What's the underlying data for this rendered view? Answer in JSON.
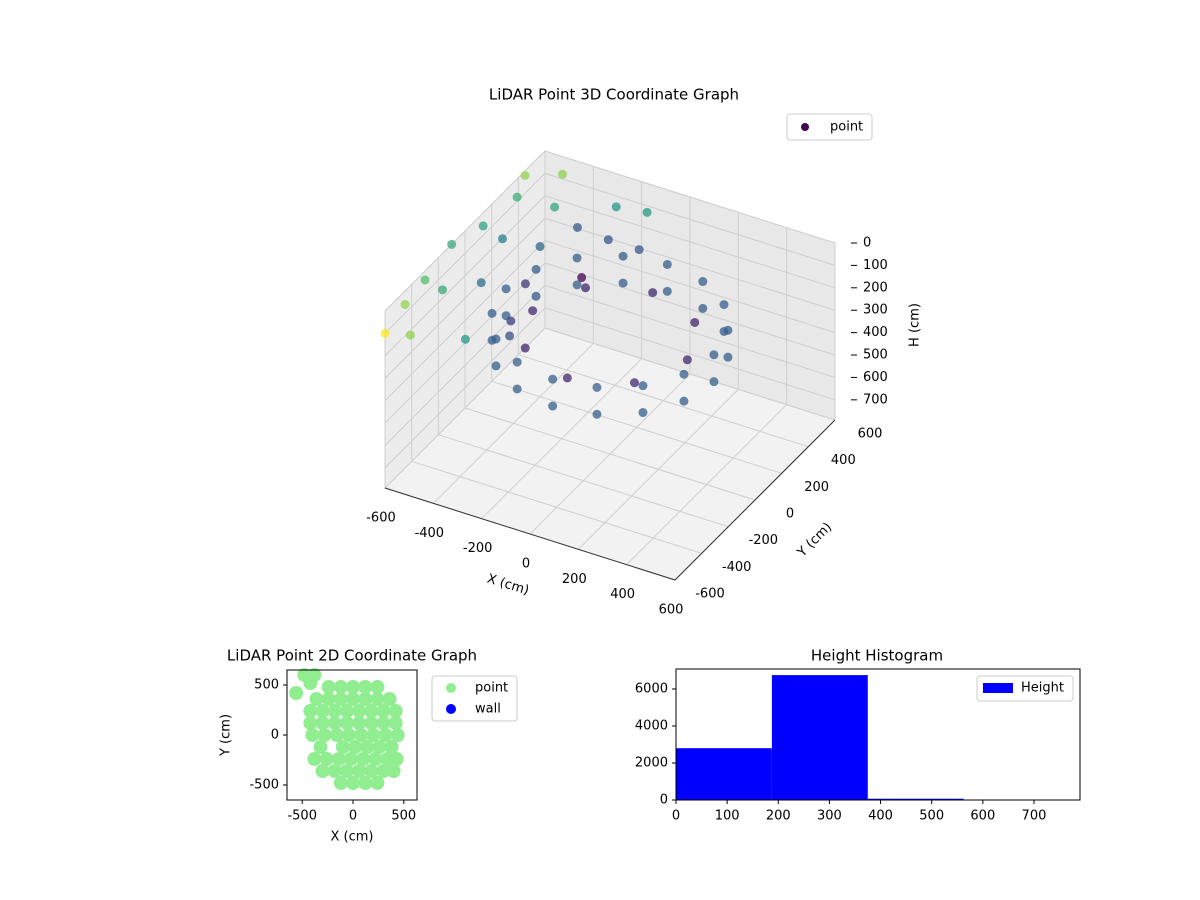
{
  "chart_data": [
    {
      "type": "scatter3d",
      "title": "LiDAR Point 3D Coordinate Graph",
      "xlabel": "X (cm)",
      "ylabel": "Y (cm)",
      "zlabel": "H (cm)",
      "xlim": [
        -600,
        600
      ],
      "ylim": [
        -600,
        600
      ],
      "zlim": [
        790,
        0
      ],
      "xticks": [
        -600,
        -400,
        -200,
        0,
        200,
        400,
        600
      ],
      "yticks": [
        -600,
        -400,
        -200,
        0,
        200,
        400,
        600
      ],
      "zticks": [
        0,
        100,
        200,
        300,
        400,
        500,
        600,
        700
      ],
      "cmap": "viridis",
      "legend": "upper right",
      "series": [
        {
          "name": "point",
          "color": "#440154",
          "x": [
            430,
            397,
            304,
            165,
            0,
            -165,
            -304,
            -397,
            -430,
            -397,
            -304,
            -165,
            0,
            165,
            304,
            397,
            430,
            397,
            304,
            165,
            0,
            -165,
            -304,
            -397,
            -430,
            -397,
            -304,
            -165,
            0,
            165,
            304,
            397,
            320,
            226,
            0,
            -226,
            -320,
            -226,
            0,
            226,
            -600,
            -600,
            -600,
            -550,
            -500,
            -600,
            -580,
            -550,
            -600,
            -500,
            -450,
            -400,
            -350,
            -300,
            -250,
            -200,
            -150,
            -100,
            -450,
            -350,
            -250,
            -500,
            -300,
            -200
          ],
          "y": [
            0,
            165,
            304,
            397,
            430,
            397,
            304,
            165,
            0,
            -165,
            -304,
            -397,
            -430,
            -397,
            -304,
            -165,
            0,
            165,
            304,
            397,
            430,
            397,
            304,
            165,
            0,
            -165,
            -304,
            -397,
            -430,
            -397,
            -304,
            -165,
            0,
            226,
            320,
            226,
            0,
            -226,
            -320,
            -226,
            -600,
            -450,
            -300,
            -500,
            -350,
            -100,
            100,
            300,
            450,
            550,
            400,
            200,
            0,
            -200,
            500,
            350,
            550,
            400,
            -150,
            -450,
            -300,
            100,
            300,
            150
          ],
          "z": [
            200,
            200,
            200,
            200,
            200,
            200,
            200,
            200,
            200,
            200,
            200,
            200,
            200,
            200,
            200,
            200,
            320,
            320,
            320,
            320,
            320,
            320,
            320,
            320,
            320,
            320,
            320,
            320,
            320,
            320,
            320,
            320,
            260,
            260,
            260,
            260,
            260,
            260,
            260,
            260,
            100,
            60,
            40,
            150,
            20,
            0,
            30,
            10,
            20,
            40,
            80,
            120,
            150,
            180,
            70,
            110,
            90,
            150,
            90,
            130,
            170,
            60,
            60,
            160
          ]
        }
      ]
    },
    {
      "type": "scatter",
      "title": "LiDAR Point 2D Coordinate Graph",
      "xlabel": "X (cm)",
      "ylabel": "Y (cm)",
      "xlim": [
        -650,
        630
      ],
      "ylim": [
        -650,
        650
      ],
      "xticks": [
        -500,
        0,
        500
      ],
      "yticks": [
        -500,
        0,
        500
      ],
      "legend": "outside right",
      "series": [
        {
          "name": "point",
          "color": "#90ee90",
          "x": [
            -240,
            -120,
            0,
            120,
            240,
            -360,
            -240,
            -120,
            0,
            120,
            240,
            360,
            -420,
            -300,
            -180,
            -60,
            60,
            180,
            300,
            420,
            -420,
            -300,
            -180,
            -60,
            60,
            180,
            300,
            420,
            -400,
            -280,
            -160,
            -40,
            80,
            200,
            320,
            440,
            -320,
            -100,
            20,
            140,
            260,
            380,
            -380,
            -260,
            -140,
            -20,
            100,
            220,
            340,
            430,
            -300,
            -180,
            -60,
            60,
            180,
            300,
            400,
            -120,
            0,
            120,
            240,
            -560,
            -480,
            -420,
            -380
          ],
          "y": [
            480,
            480,
            480,
            480,
            480,
            360,
            360,
            360,
            360,
            360,
            360,
            360,
            240,
            240,
            240,
            240,
            240,
            240,
            240,
            240,
            120,
            120,
            120,
            120,
            120,
            120,
            120,
            120,
            0,
            0,
            0,
            0,
            0,
            0,
            0,
            0,
            -120,
            -120,
            -120,
            -120,
            -120,
            -120,
            -240,
            -240,
            -240,
            -240,
            -240,
            -240,
            -240,
            -240,
            -360,
            -360,
            -360,
            -360,
            -360,
            -360,
            -360,
            -480,
            -480,
            -480,
            -480,
            420,
            600,
            520,
            600
          ]
        },
        {
          "name": "wall",
          "color": "#0000ff",
          "x": [],
          "y": []
        }
      ]
    },
    {
      "type": "histogram",
      "title": "Height Histogram",
      "bins": [
        0,
        187.5,
        375,
        562.5,
        750
      ],
      "xlim": [
        0,
        790
      ],
      "ylim": [
        0,
        7080
      ],
      "xticks": [
        0,
        100,
        200,
        300,
        400,
        500,
        600,
        700
      ],
      "yticks": [
        0,
        2000,
        4000,
        6000
      ],
      "legend": "upper right",
      "series": [
        {
          "name": "Height",
          "color": "#0000ff",
          "values": [
            2800,
            6750,
            70,
            10
          ]
        }
      ]
    }
  ]
}
